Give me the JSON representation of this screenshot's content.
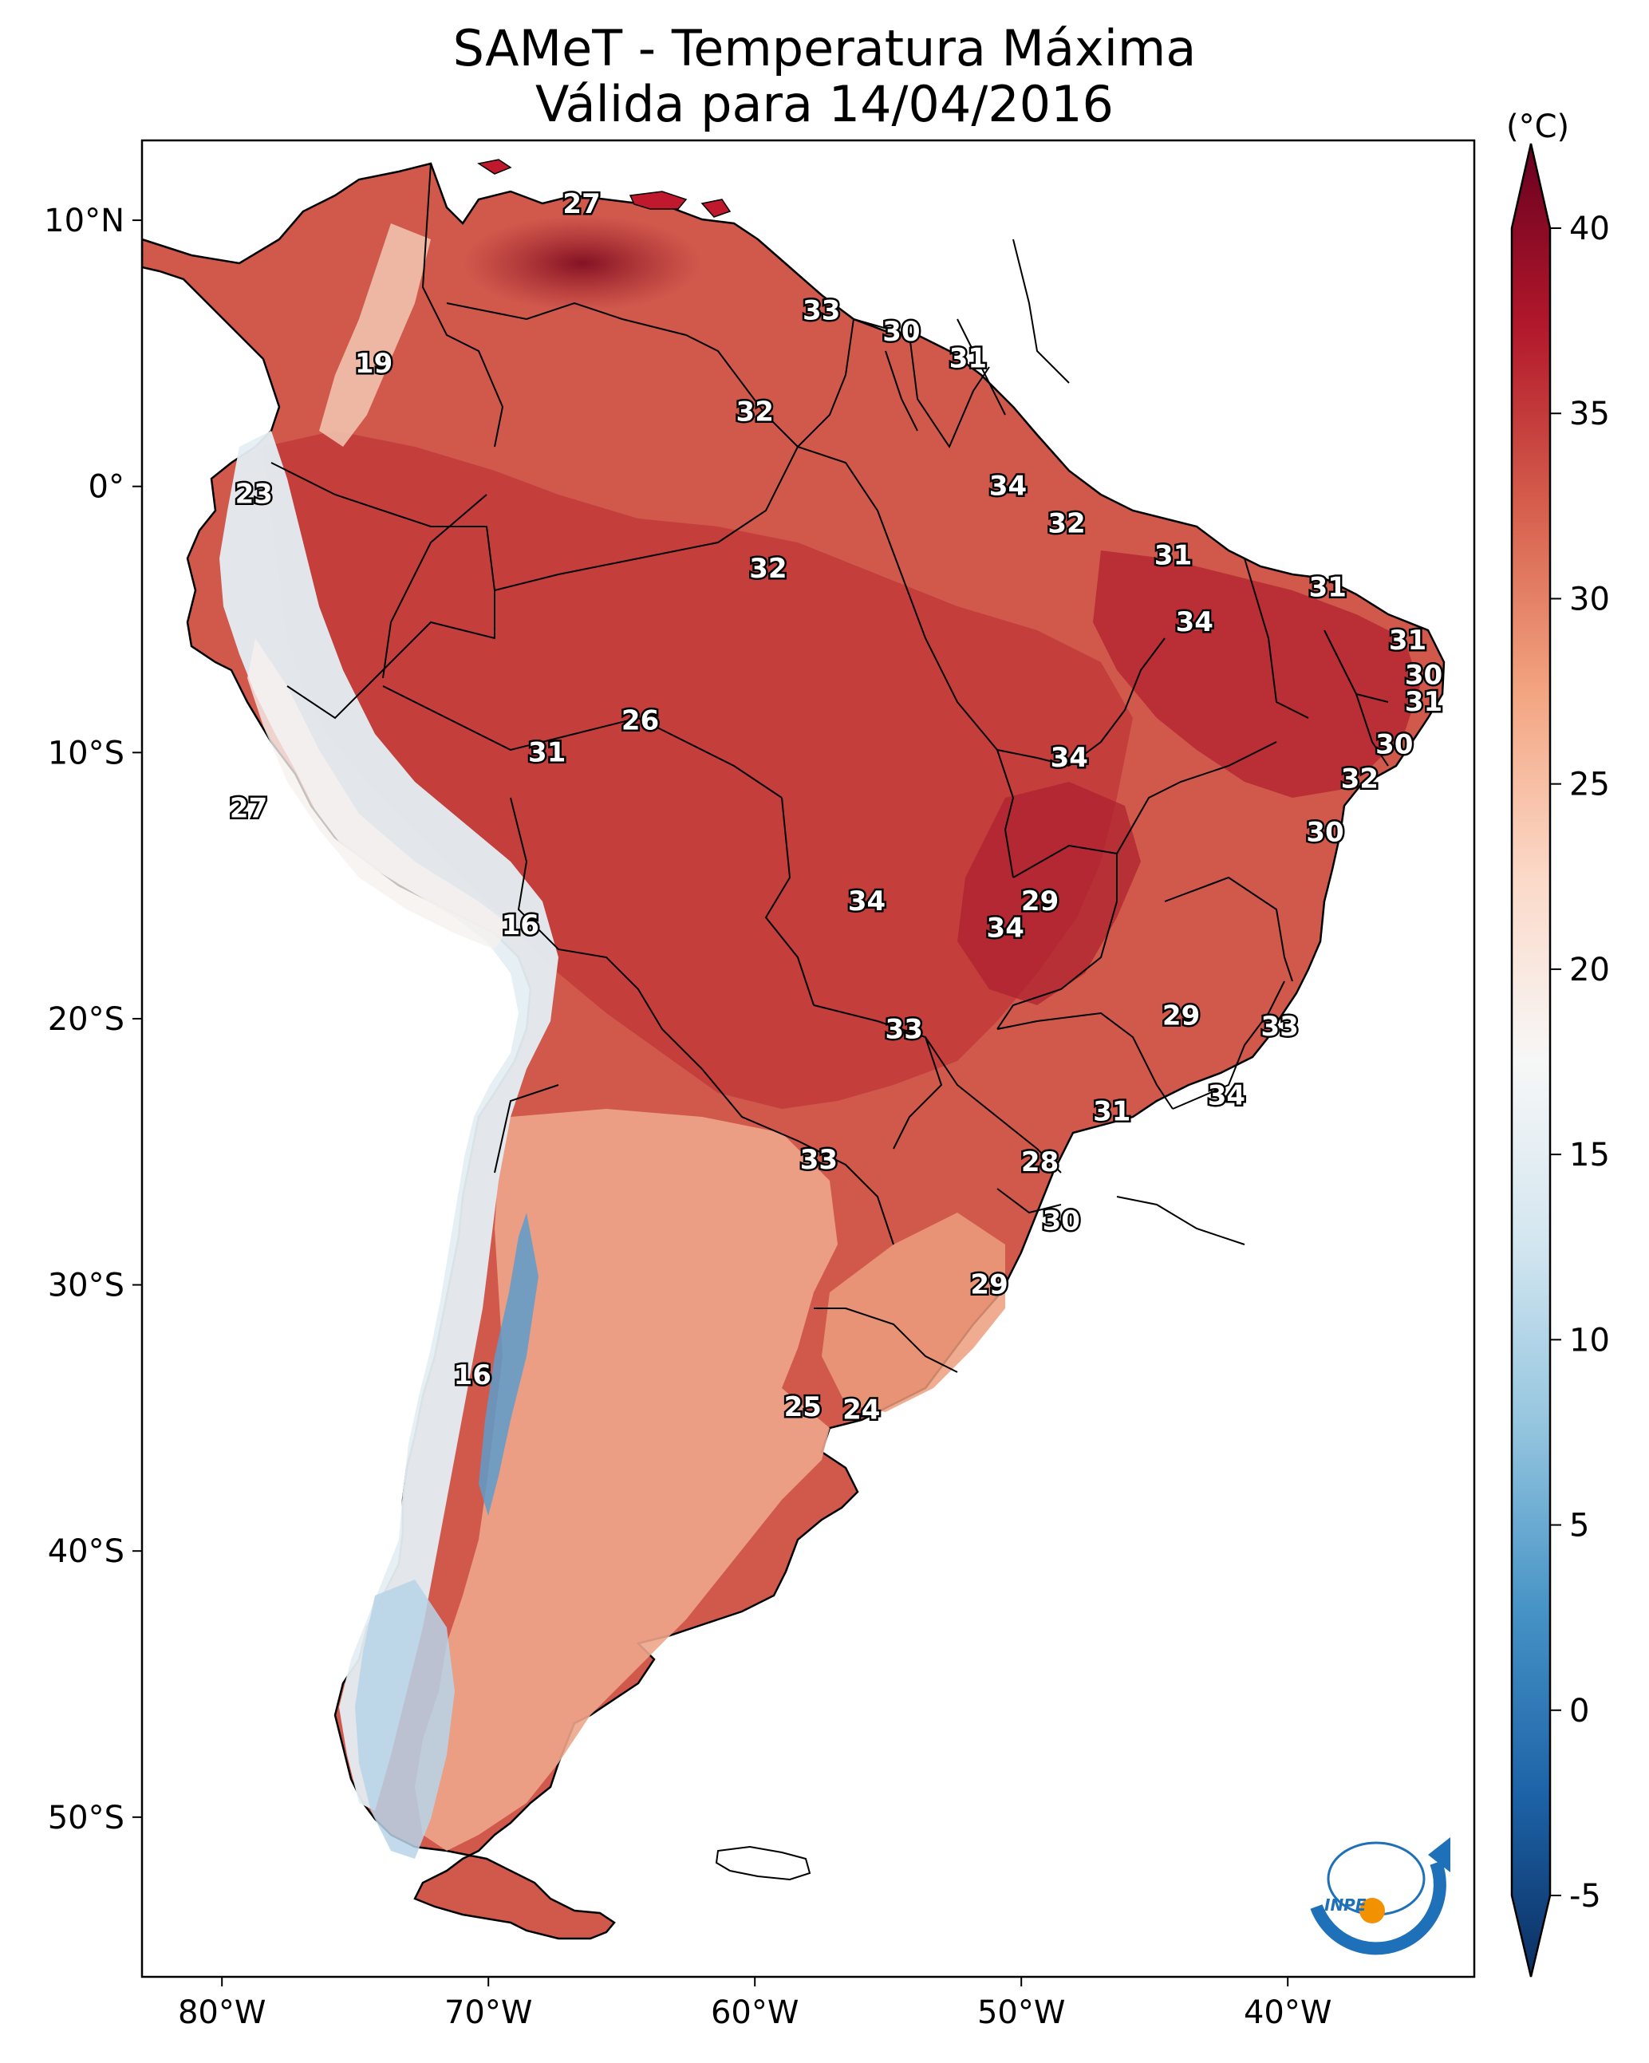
{
  "title": {
    "line1": "SAMeT - Temperatura Máxima",
    "line2": "Válida para 14/04/2016"
  },
  "map": {
    "lon_range": [
      -83,
      -33
    ],
    "lat_range": [
      -56,
      13
    ],
    "lon_ticks": [
      {
        "value": -80,
        "label": "80°W"
      },
      {
        "value": -70,
        "label": "70°W"
      },
      {
        "value": -60,
        "label": "60°W"
      },
      {
        "value": -50,
        "label": "50°W"
      },
      {
        "value": -40,
        "label": "40°W"
      }
    ],
    "lat_ticks": [
      {
        "value": 10,
        "label": "10°N"
      },
      {
        "value": 0,
        "label": "0°"
      },
      {
        "value": -10,
        "label": "10°S"
      },
      {
        "value": -20,
        "label": "20°S"
      },
      {
        "value": -30,
        "label": "30°S"
      },
      {
        "value": -40,
        "label": "40°S"
      },
      {
        "value": -50,
        "label": "50°S"
      }
    ],
    "station_values": [
      {
        "lon": -66.5,
        "lat": 10.6,
        "text": "27"
      },
      {
        "lon": -57.5,
        "lat": 6.6,
        "text": "33"
      },
      {
        "lon": -54.5,
        "lat": 5.8,
        "text": "30"
      },
      {
        "lon": -52.0,
        "lat": 4.8,
        "text": "31"
      },
      {
        "lon": -60.0,
        "lat": 2.8,
        "text": "32"
      },
      {
        "lon": -74.3,
        "lat": 4.6,
        "text": "19"
      },
      {
        "lon": -78.8,
        "lat": -0.3,
        "text": "23"
      },
      {
        "lon": -50.5,
        "lat": 0.0,
        "text": "34"
      },
      {
        "lon": -48.3,
        "lat": -1.4,
        "text": "32"
      },
      {
        "lon": -59.5,
        "lat": -3.1,
        "text": "32"
      },
      {
        "lon": -44.3,
        "lat": -2.6,
        "text": "31"
      },
      {
        "lon": -38.5,
        "lat": -3.8,
        "text": "31"
      },
      {
        "lon": -43.5,
        "lat": -5.1,
        "text": "34"
      },
      {
        "lon": -35.5,
        "lat": -5.8,
        "text": "31"
      },
      {
        "lon": -34.9,
        "lat": -7.1,
        "text": "30"
      },
      {
        "lon": -34.9,
        "lat": -8.1,
        "text": "31"
      },
      {
        "lon": -64.3,
        "lat": -8.8,
        "text": "26"
      },
      {
        "lon": -67.8,
        "lat": -10.0,
        "text": "31"
      },
      {
        "lon": -48.2,
        "lat": -10.2,
        "text": "34"
      },
      {
        "lon": -36.0,
        "lat": -9.7,
        "text": "30"
      },
      {
        "lon": -37.3,
        "lat": -11.0,
        "text": "32"
      },
      {
        "lon": -79.0,
        "lat": -12.1,
        "text": "27"
      },
      {
        "lon": -38.6,
        "lat": -13.0,
        "text": "30"
      },
      {
        "lon": -68.8,
        "lat": -16.5,
        "text": "16"
      },
      {
        "lon": -55.8,
        "lat": -15.6,
        "text": "34"
      },
      {
        "lon": -49.3,
        "lat": -15.6,
        "text": "29"
      },
      {
        "lon": -50.6,
        "lat": -16.6,
        "text": "34"
      },
      {
        "lon": -54.4,
        "lat": -20.4,
        "text": "33"
      },
      {
        "lon": -44.0,
        "lat": -19.9,
        "text": "29"
      },
      {
        "lon": -40.3,
        "lat": -20.3,
        "text": "33"
      },
      {
        "lon": -42.3,
        "lat": -22.9,
        "text": "34"
      },
      {
        "lon": -46.6,
        "lat": -23.5,
        "text": "31"
      },
      {
        "lon": -57.6,
        "lat": -25.3,
        "text": "33"
      },
      {
        "lon": -49.3,
        "lat": -25.4,
        "text": "28"
      },
      {
        "lon": -48.5,
        "lat": -27.6,
        "text": "30"
      },
      {
        "lon": -51.2,
        "lat": -30.0,
        "text": "29"
      },
      {
        "lon": -70.6,
        "lat": -33.4,
        "text": "16"
      },
      {
        "lon": -58.2,
        "lat": -34.6,
        "text": "25"
      },
      {
        "lon": -56.0,
        "lat": -34.7,
        "text": "24"
      }
    ]
  },
  "colorbar": {
    "unit": "(°C)",
    "min": -5,
    "max": 40,
    "ticks": [
      {
        "value": 40,
        "label": "40"
      },
      {
        "value": 35,
        "label": "35"
      },
      {
        "value": 30,
        "label": "30"
      },
      {
        "value": 25,
        "label": "25"
      },
      {
        "value": 20,
        "label": "20"
      },
      {
        "value": 15,
        "label": "15"
      },
      {
        "value": 10,
        "label": "10"
      },
      {
        "value": 5,
        "label": "5"
      },
      {
        "value": 0,
        "label": "0"
      },
      {
        "value": -5,
        "label": "-5"
      }
    ],
    "colors": [
      "#0b2f61",
      "#1d63a8",
      "#4693c6",
      "#94c5df",
      "#d3e6f0",
      "#f7f7f7",
      "#fbd9c8",
      "#f3a582",
      "#d6604d",
      "#b2182b",
      "#67001f"
    ]
  },
  "logo": {
    "text": "INPE"
  }
}
